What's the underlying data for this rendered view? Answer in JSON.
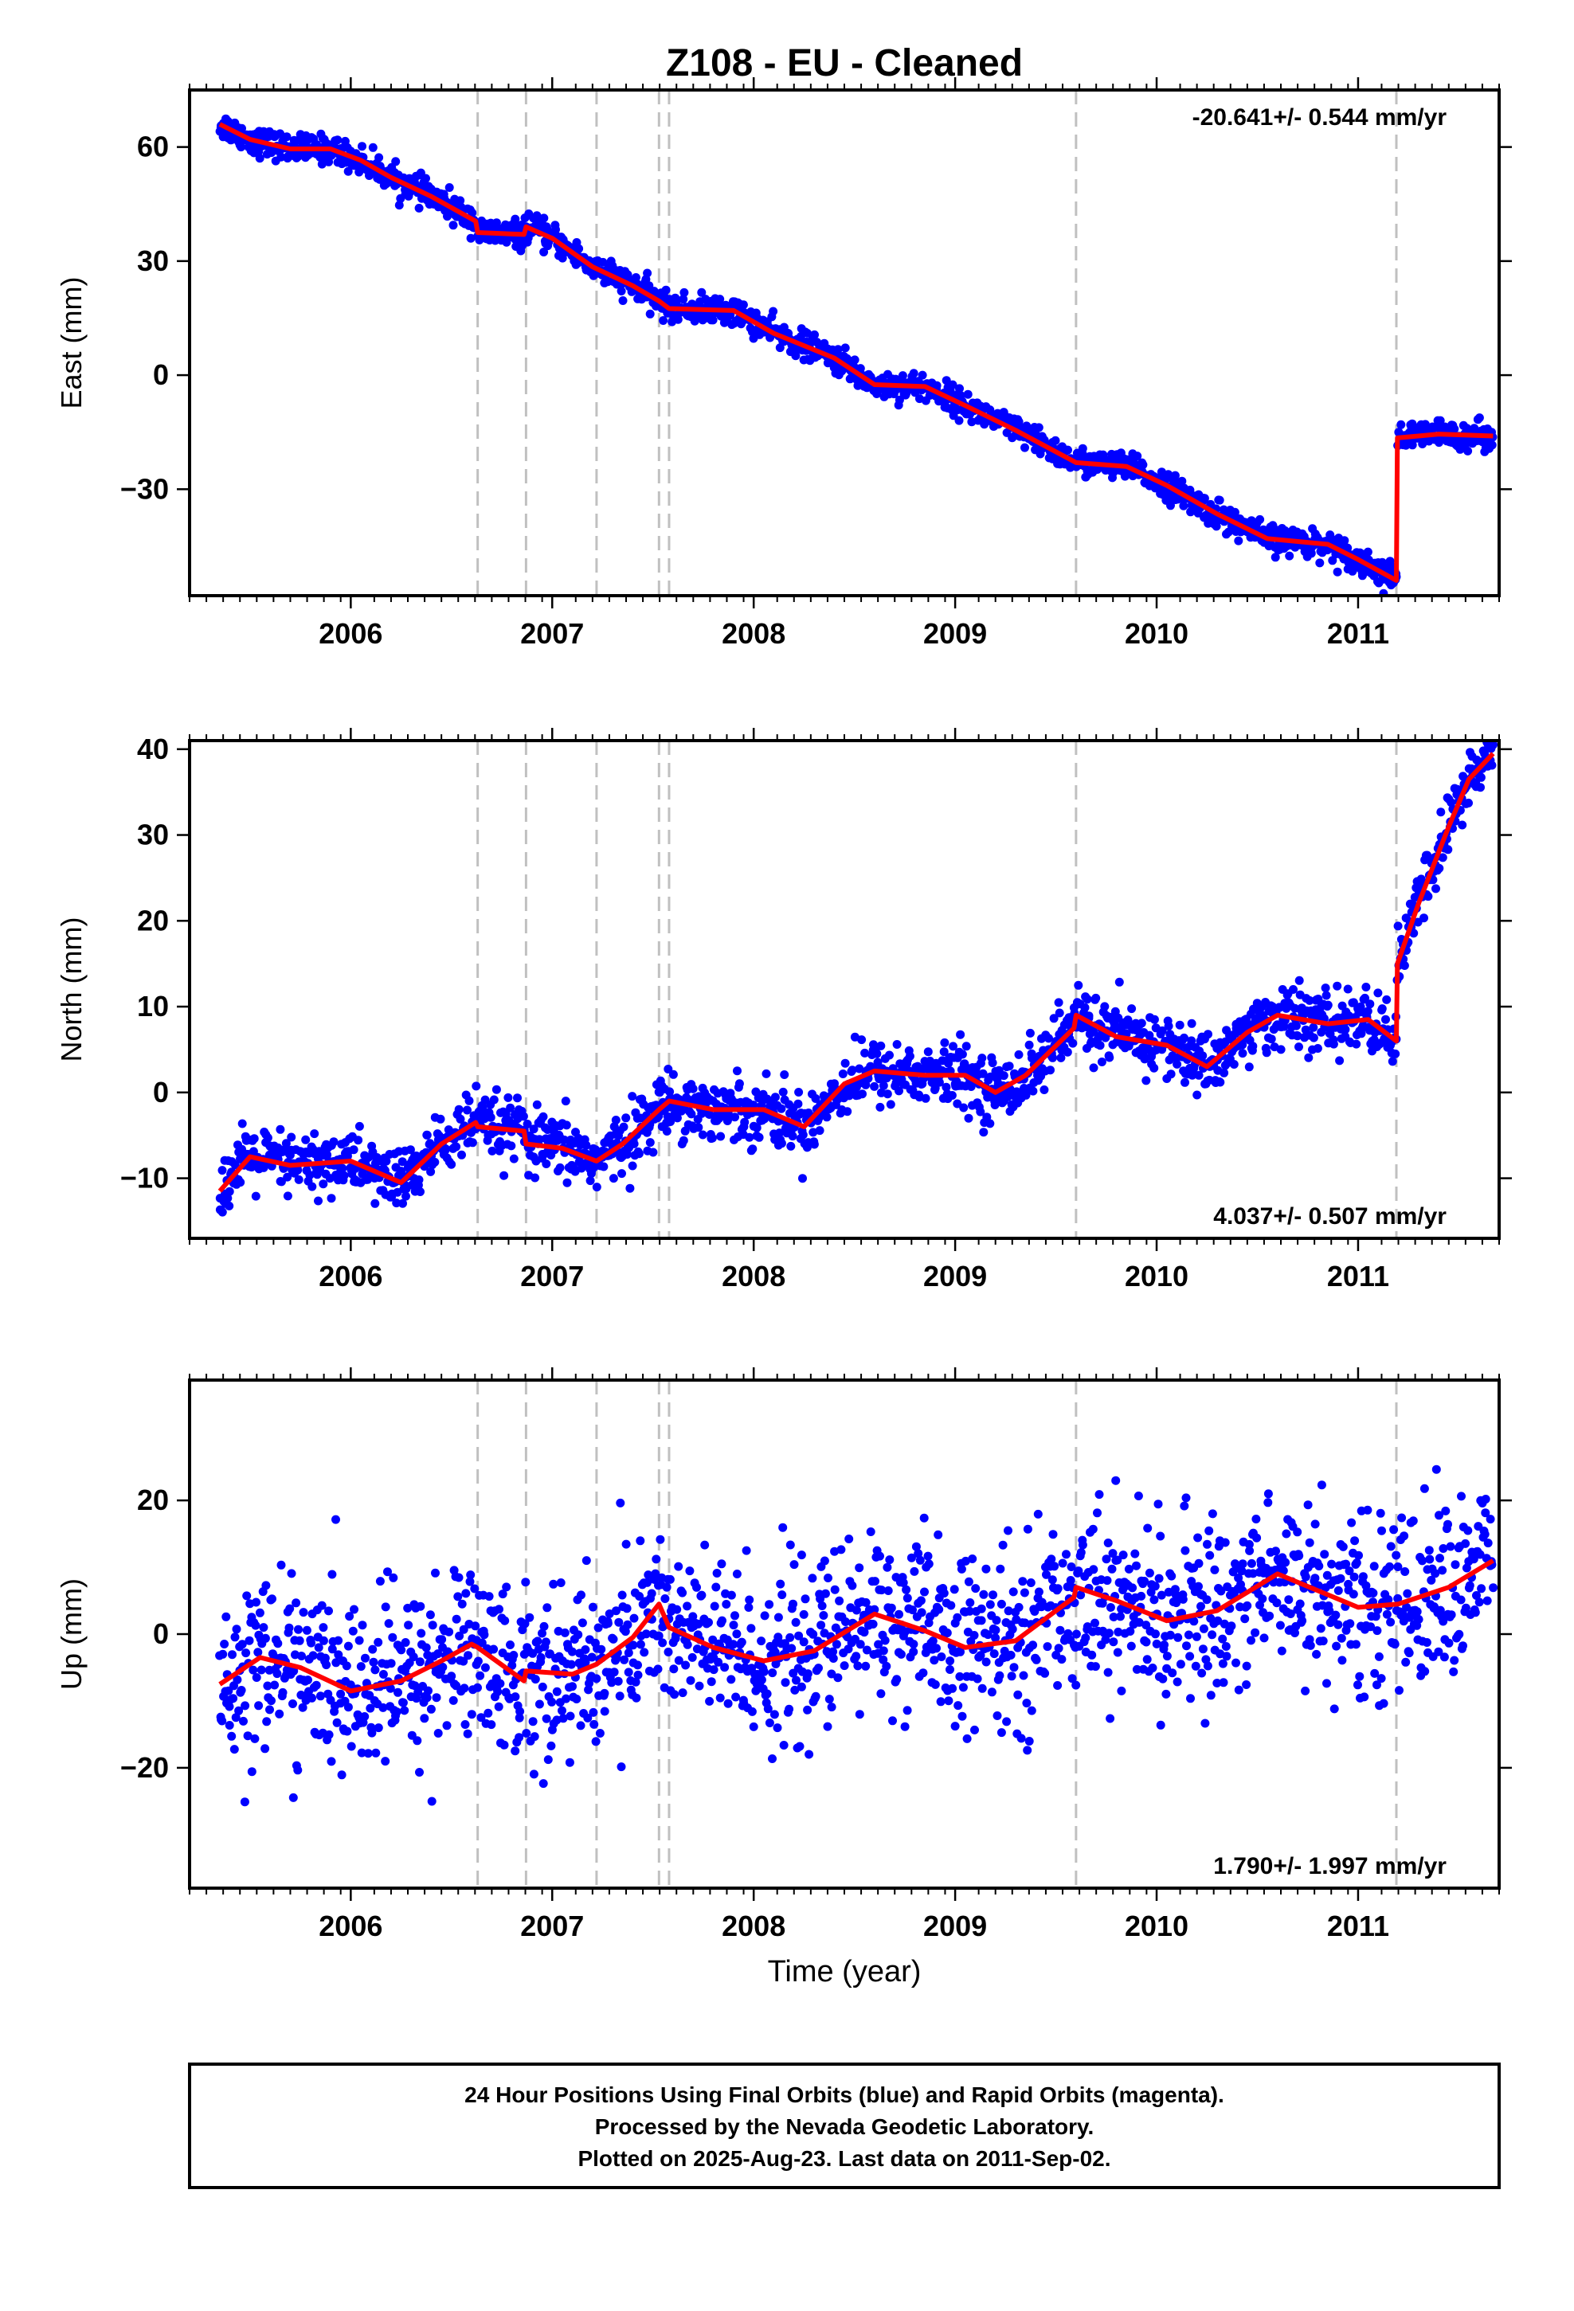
{
  "title": "Z108  - EU - Cleaned",
  "colors": {
    "data_points": "#0000ff",
    "model_line": "#ff0000",
    "event_lines": "#c0c0c0",
    "frame": "#000000"
  },
  "xaxis": {
    "label": "Time (year)",
    "range": [
      2005.2,
      2011.7
    ],
    "ticks": [
      "2006",
      "2007",
      "2008",
      "2009",
      "2010",
      "2011"
    ],
    "tick_values": [
      2006,
      2007,
      2008,
      2009,
      2010,
      2011
    ]
  },
  "event_lines": [
    2006.63,
    2006.87,
    2007.22,
    2007.53,
    2007.58,
    2009.6,
    2011.19
  ],
  "footer": {
    "line1": "24 Hour Positions Using Final Orbits (blue) and Rapid Orbits (magenta).",
    "line2": "Processed by the Nevada Geodetic Laboratory.",
    "line3": "Plotted on 2025-Aug-23. Last data on 2011-Sep-02."
  },
  "chart_data": [
    {
      "type": "scatter",
      "panel": "east",
      "ylabel": "East (mm)",
      "rate_label": "-20.641+/- 0.544 mm/yr",
      "rate_position": "top-right",
      "ylim": [
        -58,
        75
      ],
      "yticks": [
        -30,
        0,
        30,
        60
      ],
      "ytick_labels": [
        "−30",
        "0",
        "30",
        "60"
      ],
      "noise_mm": 1.8,
      "model": [
        {
          "t": 2005.35,
          "v": 66.0
        },
        {
          "t": 2005.5,
          "v": 62.0
        },
        {
          "t": 2005.7,
          "v": 59.5
        },
        {
          "t": 2005.9,
          "v": 59.5
        },
        {
          "t": 2006.05,
          "v": 56.5
        },
        {
          "t": 2006.2,
          "v": 52.0
        },
        {
          "t": 2006.4,
          "v": 47.0
        },
        {
          "t": 2006.62,
          "v": 40.5
        },
        {
          "t": 2006.63,
          "v": 37.5
        },
        {
          "t": 2006.86,
          "v": 37.0
        },
        {
          "t": 2006.87,
          "v": 39.0
        },
        {
          "t": 2007.0,
          "v": 36.0
        },
        {
          "t": 2007.2,
          "v": 28.5
        },
        {
          "t": 2007.4,
          "v": 23.5
        },
        {
          "t": 2007.53,
          "v": 19.5
        },
        {
          "t": 2007.58,
          "v": 17.5
        },
        {
          "t": 2007.9,
          "v": 17.0
        },
        {
          "t": 2008.1,
          "v": 11.0
        },
        {
          "t": 2008.4,
          "v": 4.5
        },
        {
          "t": 2008.6,
          "v": -2.5
        },
        {
          "t": 2008.85,
          "v": -3.0
        },
        {
          "t": 2009.05,
          "v": -8.0
        },
        {
          "t": 2009.3,
          "v": -14.5
        },
        {
          "t": 2009.6,
          "v": -23.0
        },
        {
          "t": 2009.85,
          "v": -24.0
        },
        {
          "t": 2010.05,
          "v": -29.0
        },
        {
          "t": 2010.3,
          "v": -36.5
        },
        {
          "t": 2010.55,
          "v": -43.0
        },
        {
          "t": 2010.85,
          "v": -44.5
        },
        {
          "t": 2011.0,
          "v": -48.5
        },
        {
          "t": 2011.19,
          "v": -54.0
        },
        {
          "t": 2011.195,
          "v": -16.5
        },
        {
          "t": 2011.4,
          "v": -15.5
        },
        {
          "t": 2011.67,
          "v": -16.0
        }
      ]
    },
    {
      "type": "scatter",
      "panel": "north",
      "ylabel": "North (mm)",
      "rate_label": "4.037+/- 0.507 mm/yr",
      "rate_position": "bottom-right",
      "ylim": [
        -17,
        41
      ],
      "yticks": [
        -10,
        0,
        10,
        20,
        30,
        40
      ],
      "ytick_labels": [
        "−10",
        "0",
        "10",
        "20",
        "30",
        "40"
      ],
      "noise_mm": 1.8,
      "model": [
        {
          "t": 2005.35,
          "v": -11.5
        },
        {
          "t": 2005.5,
          "v": -7.5
        },
        {
          "t": 2005.7,
          "v": -8.5
        },
        {
          "t": 2006.0,
          "v": -8.0
        },
        {
          "t": 2006.25,
          "v": -10.5
        },
        {
          "t": 2006.45,
          "v": -6.0
        },
        {
          "t": 2006.62,
          "v": -3.5
        },
        {
          "t": 2006.63,
          "v": -4.0
        },
        {
          "t": 2006.86,
          "v": -4.5
        },
        {
          "t": 2006.87,
          "v": -6.0
        },
        {
          "t": 2007.05,
          "v": -6.5
        },
        {
          "t": 2007.22,
          "v": -8.0
        },
        {
          "t": 2007.35,
          "v": -6.0
        },
        {
          "t": 2007.53,
          "v": -2.0
        },
        {
          "t": 2007.58,
          "v": -1.0
        },
        {
          "t": 2007.8,
          "v": -2.0
        },
        {
          "t": 2008.05,
          "v": -2.0
        },
        {
          "t": 2008.25,
          "v": -4.0
        },
        {
          "t": 2008.45,
          "v": 1.0
        },
        {
          "t": 2008.6,
          "v": 2.5
        },
        {
          "t": 2008.85,
          "v": 2.0
        },
        {
          "t": 2009.05,
          "v": 2.0
        },
        {
          "t": 2009.2,
          "v": 0.0
        },
        {
          "t": 2009.35,
          "v": 2.0
        },
        {
          "t": 2009.59,
          "v": 7.5
        },
        {
          "t": 2009.6,
          "v": 9.0
        },
        {
          "t": 2009.8,
          "v": 6.5
        },
        {
          "t": 2010.05,
          "v": 5.5
        },
        {
          "t": 2010.25,
          "v": 3.0
        },
        {
          "t": 2010.45,
          "v": 7.0
        },
        {
          "t": 2010.6,
          "v": 9.0
        },
        {
          "t": 2010.85,
          "v": 8.0
        },
        {
          "t": 2011.05,
          "v": 8.5
        },
        {
          "t": 2011.19,
          "v": 6.0
        },
        {
          "t": 2011.195,
          "v": 15.0
        },
        {
          "t": 2011.3,
          "v": 22.0
        },
        {
          "t": 2011.45,
          "v": 31.0
        },
        {
          "t": 2011.55,
          "v": 36.5
        },
        {
          "t": 2011.67,
          "v": 39.5
        }
      ]
    },
    {
      "type": "scatter",
      "panel": "up",
      "ylabel": "Up (mm)",
      "rate_label": "1.790+/- 1.997 mm/yr",
      "rate_position": "bottom-right",
      "ylim": [
        -38,
        38
      ],
      "yticks": [
        -20,
        0,
        20
      ],
      "ytick_labels": [
        "−20",
        "0",
        "20"
      ],
      "noise_mm": 6.5,
      "model": [
        {
          "t": 2005.35,
          "v": -7.5
        },
        {
          "t": 2005.55,
          "v": -3.5
        },
        {
          "t": 2005.75,
          "v": -5.0
        },
        {
          "t": 2006.0,
          "v": -8.5
        },
        {
          "t": 2006.25,
          "v": -7.0
        },
        {
          "t": 2006.45,
          "v": -4.0
        },
        {
          "t": 2006.6,
          "v": -1.5
        },
        {
          "t": 2006.63,
          "v": -2.0
        },
        {
          "t": 2006.86,
          "v": -7.0
        },
        {
          "t": 2006.87,
          "v": -5.5
        },
        {
          "t": 2007.1,
          "v": -6.0
        },
        {
          "t": 2007.22,
          "v": -4.5
        },
        {
          "t": 2007.4,
          "v": -0.5
        },
        {
          "t": 2007.53,
          "v": 4.5
        },
        {
          "t": 2007.58,
          "v": 1.0
        },
        {
          "t": 2007.8,
          "v": -2.0
        },
        {
          "t": 2008.05,
          "v": -4.0
        },
        {
          "t": 2008.3,
          "v": -2.5
        },
        {
          "t": 2008.6,
          "v": 3.0
        },
        {
          "t": 2008.85,
          "v": 0.5
        },
        {
          "t": 2009.05,
          "v": -2.0
        },
        {
          "t": 2009.3,
          "v": -1.0
        },
        {
          "t": 2009.59,
          "v": 5.5
        },
        {
          "t": 2009.6,
          "v": 7.0
        },
        {
          "t": 2009.8,
          "v": 5.0
        },
        {
          "t": 2010.05,
          "v": 2.0
        },
        {
          "t": 2010.3,
          "v": 3.5
        },
        {
          "t": 2010.6,
          "v": 9.0
        },
        {
          "t": 2010.8,
          "v": 6.5
        },
        {
          "t": 2011.0,
          "v": 4.0
        },
        {
          "t": 2011.2,
          "v": 4.5
        },
        {
          "t": 2011.45,
          "v": 7.0
        },
        {
          "t": 2011.67,
          "v": 11.0
        }
      ]
    }
  ]
}
